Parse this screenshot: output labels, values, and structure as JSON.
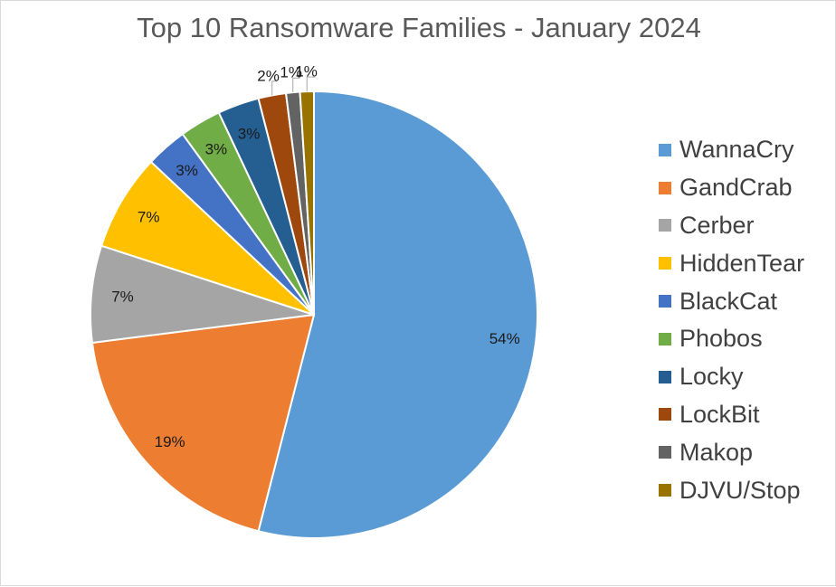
{
  "chart_data": {
    "type": "pie",
    "title": "Top 10 Ransomware Families - January 2024",
    "categories": [
      "WannaCry",
      "GandCrab",
      "Cerber",
      "HiddenTear",
      "BlackCat",
      "Phobos",
      "Locky",
      "LockBit",
      "Makop",
      "DJVU/Stop"
    ],
    "values": [
      54,
      19,
      7,
      7,
      3,
      3,
      3,
      2,
      1,
      1
    ],
    "labels": [
      "54%",
      "19%",
      "7%",
      "7%",
      "3%",
      "3%",
      "3%",
      "2%",
      "1%",
      "1%"
    ],
    "colors": [
      "#5b9bd5",
      "#ed7d31",
      "#a5a5a5",
      "#ffc000",
      "#4472c4",
      "#70ad47",
      "#255e91",
      "#9e480e",
      "#636363",
      "#997300"
    ],
    "legend_position": "right"
  }
}
